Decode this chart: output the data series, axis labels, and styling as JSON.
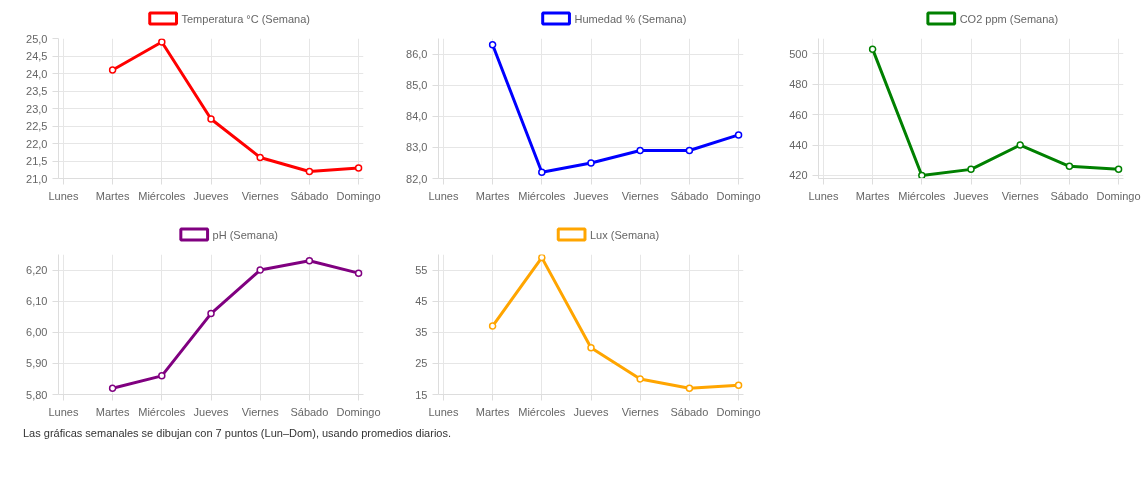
{
  "chart_data": [
    {
      "type": "line",
      "categories": [
        "Lunes",
        "Martes",
        "Miércoles",
        "Jueves",
        "Viernes",
        "Sábado",
        "Domingo"
      ],
      "series": [
        {
          "name": "Temperatura °C (Semana)",
          "color": "#ff0000",
          "values": [
            null,
            24.1,
            24.9,
            22.7,
            21.6,
            21.2,
            21.3
          ]
        }
      ],
      "ylim": [
        21.0,
        25.0
      ],
      "yticks": [
        {
          "value": 21.0,
          "label": "21,0"
        },
        {
          "value": 21.5,
          "label": "21,5"
        },
        {
          "value": 22.0,
          "label": "22,0"
        },
        {
          "value": 22.5,
          "label": "22,5"
        },
        {
          "value": 23.0,
          "label": "23,0"
        },
        {
          "value": 23.5,
          "label": "23,5"
        },
        {
          "value": 24.0,
          "label": "24,0"
        },
        {
          "value": 24.5,
          "label": "24,5"
        },
        {
          "value": 25.0,
          "label": "25,0"
        }
      ],
      "grid": true,
      "legend": "top",
      "marker": "circle",
      "line_style": "solid"
    },
    {
      "type": "line",
      "categories": [
        "Lunes",
        "Martes",
        "Miércoles",
        "Jueves",
        "Viernes",
        "Sábado",
        "Domingo"
      ],
      "series": [
        {
          "name": "Humedad % (Semana)",
          "color": "#0000ff",
          "values": [
            null,
            86.3,
            82.2,
            82.5,
            82.9,
            82.9,
            83.4
          ]
        }
      ],
      "ylim": [
        82.0,
        86.5
      ],
      "yticks": [
        {
          "value": 82.0,
          "label": "82,0"
        },
        {
          "value": 83.0,
          "label": "83,0"
        },
        {
          "value": 84.0,
          "label": "84,0"
        },
        {
          "value": 85.0,
          "label": "85,0"
        },
        {
          "value": 86.0,
          "label": "86,0"
        }
      ],
      "grid": true,
      "legend": "top",
      "marker": "circle",
      "line_style": "solid"
    },
    {
      "type": "line",
      "categories": [
        "Lunes",
        "Martes",
        "Miércoles",
        "Jueves",
        "Viernes",
        "Sábado",
        "Domingo"
      ],
      "series": [
        {
          "name": "CO2 ppm (Semana)",
          "color": "#008000",
          "values": [
            null,
            503,
            420,
            424,
            440,
            426,
            424
          ]
        }
      ],
      "ylim": [
        418,
        510
      ],
      "yticks": [
        420,
        440,
        460,
        480,
        500
      ],
      "grid": true,
      "legend": "top",
      "marker": "circle",
      "line_style": "solid"
    },
    {
      "type": "line",
      "categories": [
        "Lunes",
        "Martes",
        "Miércoles",
        "Jueves",
        "Viernes",
        "Sábado",
        "Domingo"
      ],
      "series": [
        {
          "name": "pH (Semana)",
          "color": "#800080",
          "values": [
            null,
            5.82,
            5.86,
            6.06,
            6.2,
            6.23,
            6.19
          ]
        }
      ],
      "ylim": [
        5.8,
        6.25
      ],
      "yticks": [
        {
          "value": 5.8,
          "label": "5,80"
        },
        {
          "value": 5.9,
          "label": "5,90"
        },
        {
          "value": 6.0,
          "label": "6,00"
        },
        {
          "value": 6.1,
          "label": "6,10"
        },
        {
          "value": 6.2,
          "label": "6,20"
        }
      ],
      "grid": true,
      "legend": "top",
      "marker": "circle",
      "line_style": "solid"
    },
    {
      "type": "line",
      "categories": [
        "Lunes",
        "Martes",
        "Miércoles",
        "Jueves",
        "Viernes",
        "Sábado",
        "Domingo"
      ],
      "series": [
        {
          "name": "Lux (Semana)",
          "color": "#ffa500",
          "values": [
            null,
            37,
            59,
            30,
            20,
            17,
            18
          ]
        }
      ],
      "ylim": [
        15,
        60
      ],
      "yticks": [
        15,
        25,
        35,
        45,
        55
      ],
      "grid": true,
      "legend": "top",
      "marker": "circle",
      "line_style": "solid",
      "annotations": [
        "Las gráficas semanales se dibujan con 7 puntos (Lun–Dom), usando promedios diarios."
      ]
    }
  ]
}
